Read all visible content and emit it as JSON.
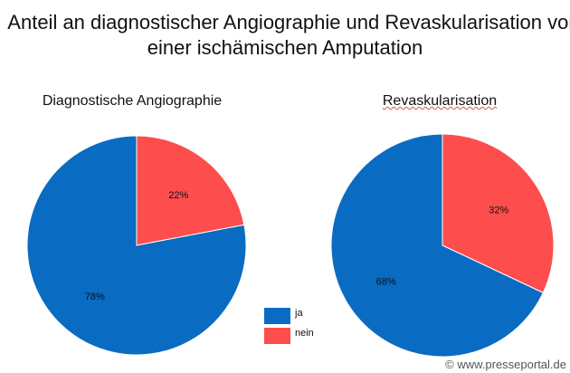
{
  "chart_data": [
    {
      "type": "pie",
      "title": "Diagnostische Angiographie",
      "categories": [
        "ja",
        "nein"
      ],
      "values": [
        78,
        22
      ],
      "labels": [
        "78%",
        "22%"
      ]
    },
    {
      "type": "pie",
      "title": "Revaskularisation",
      "categories": [
        "ja",
        "nein"
      ],
      "values": [
        68,
        32
      ],
      "labels": [
        "68%",
        "32%"
      ]
    }
  ],
  "title_line1": "Anteil an diagnostischer Angiographie und Revaskularisation vor",
  "title_line2": "einer ischämischen Amputation",
  "legend": [
    {
      "label": "ja",
      "color": "#0a6bc2"
    },
    {
      "label": "nein",
      "color": "#fd4d4d"
    }
  ],
  "watermark": "© www.presseportal.de"
}
